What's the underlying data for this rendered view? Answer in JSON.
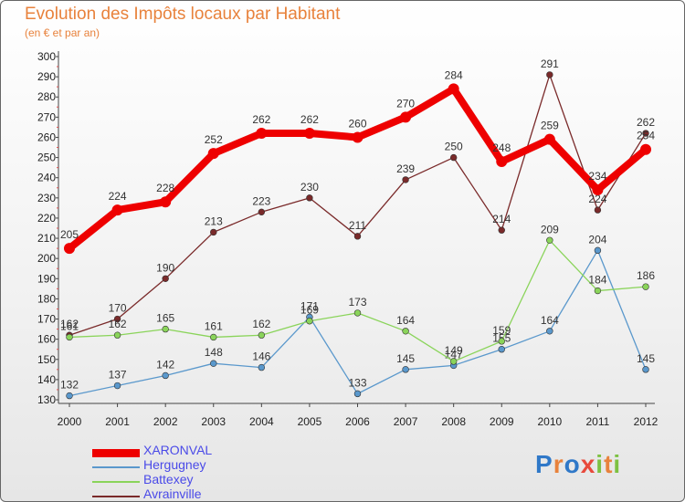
{
  "title": "Evolution des Impôts locaux par Habitant",
  "subtitle": "(en € et par an)",
  "logo": {
    "text": "Proxiti",
    "letters": [
      {
        "ch": "P",
        "color": "#2f78c8"
      },
      {
        "ch": "r",
        "color": "#e8823c"
      },
      {
        "ch": "o",
        "color": "#2f78c8"
      },
      {
        "ch": "x",
        "color": "#e84a3c"
      },
      {
        "ch": "i",
        "color": "#7dc142"
      },
      {
        "ch": "t",
        "color": "#e8823c"
      },
      {
        "ch": "i",
        "color": "#7dc142"
      }
    ]
  },
  "chart_data": {
    "type": "line",
    "title": "Evolution des Impôts locaux par Habitant",
    "subtitle": "(en € et par an)",
    "xlabel": "",
    "ylabel": "",
    "x": [
      "2000",
      "2001",
      "2002",
      "2003",
      "2004",
      "2005",
      "2006",
      "2007",
      "2008",
      "2009",
      "2010",
      "2011",
      "2012"
    ],
    "ylim": [
      130,
      300
    ],
    "yticks": [
      130,
      140,
      150,
      160,
      170,
      180,
      190,
      200,
      210,
      220,
      230,
      240,
      250,
      260,
      270,
      280,
      290,
      300
    ],
    "grid": false,
    "legend_position": "bottom-left",
    "series": [
      {
        "name": "XARONVAL",
        "color": "#ee0000",
        "values": [
          205,
          224,
          228,
          252,
          262,
          262,
          260,
          270,
          284,
          248,
          259,
          234,
          254
        ]
      },
      {
        "name": "Hergugney",
        "color": "#5a98cc",
        "values": [
          132,
          137,
          142,
          148,
          146,
          171,
          133,
          145,
          147,
          155,
          164,
          204,
          145
        ]
      },
      {
        "name": "Battexey",
        "color": "#8ad45a",
        "values": [
          161,
          162,
          165,
          161,
          162,
          169,
          173,
          164,
          149,
          159,
          209,
          184,
          186
        ]
      },
      {
        "name": "Avrainville",
        "color": "#7a2a2a",
        "values": [
          162,
          170,
          190,
          213,
          223,
          230,
          211,
          239,
          250,
          214,
          291,
          224,
          262
        ]
      }
    ]
  }
}
